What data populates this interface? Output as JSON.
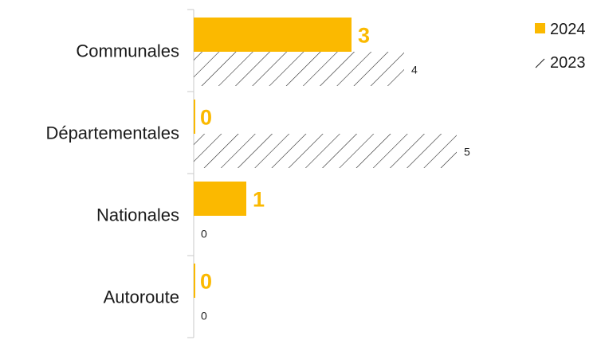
{
  "chart_data": {
    "type": "bar",
    "orientation": "horizontal",
    "categories": [
      "Communales",
      "Départementales",
      "Nationales",
      "Autoroute"
    ],
    "series": [
      {
        "name": "2024",
        "values": [
          3,
          0,
          1,
          0
        ],
        "fill": "solid",
        "color": "#FBB900"
      },
      {
        "name": "2023",
        "values": [
          4,
          5,
          0,
          0
        ],
        "fill": "hatched",
        "color": "#1a1a1a"
      }
    ],
    "data_labels": {
      "2024": [
        "3",
        "0",
        "1",
        "0"
      ],
      "2023": [
        "4",
        "5",
        "0",
        "0"
      ]
    },
    "title": "",
    "xlabel": "",
    "ylabel": "",
    "xlim": [
      0,
      5.5
    ],
    "grid": false,
    "legend_position": "top-right"
  }
}
